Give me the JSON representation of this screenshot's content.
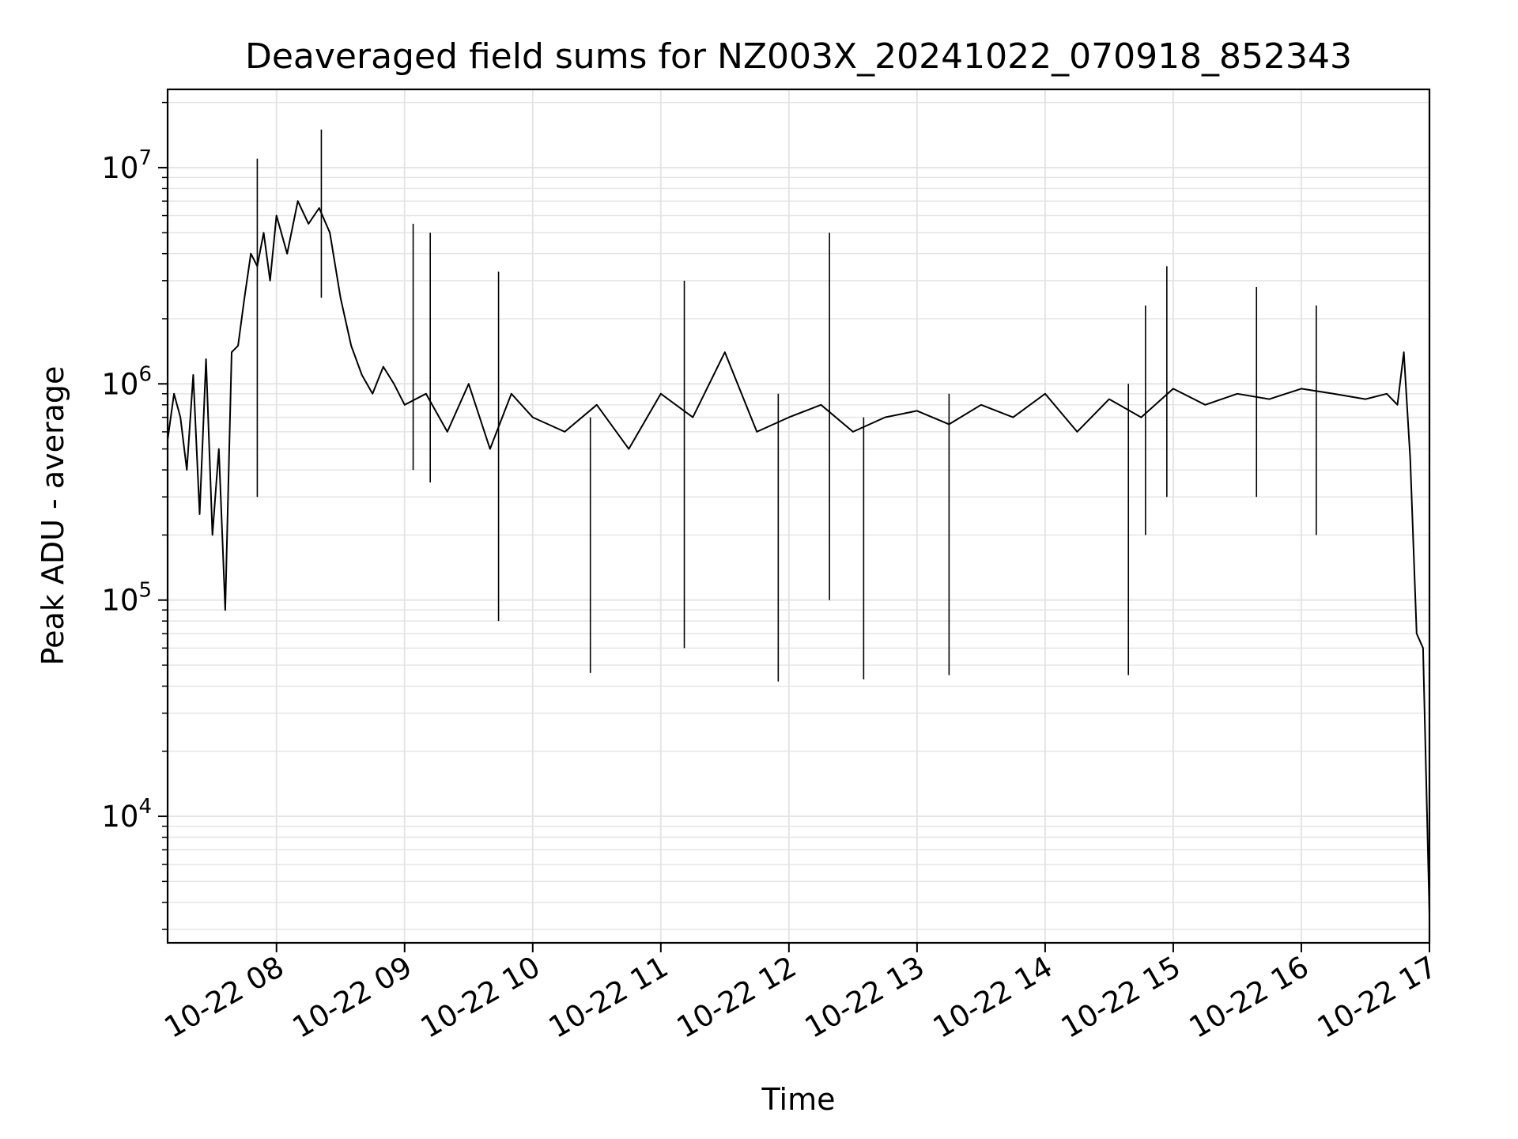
{
  "chart_data": {
    "type": "line",
    "title": "Deaveraged field sums for NZ003X_20241022_070918_852343",
    "xlabel": "Time",
    "ylabel": "Peak ADU - average",
    "yscale": "log",
    "ylim": [
      2600,
      23000000
    ],
    "xlim": [
      "2024-10-22 07:09",
      "2024-10-22 17:00"
    ],
    "grid": true,
    "line_color": "#000000",
    "grid_color": "#e5e5e5",
    "x_ticks": [
      {
        "value": "2024-10-22 08:00",
        "label": "10-22 08"
      },
      {
        "value": "2024-10-22 09:00",
        "label": "10-22 09"
      },
      {
        "value": "2024-10-22 10:00",
        "label": "10-22 10"
      },
      {
        "value": "2024-10-22 11:00",
        "label": "10-22 11"
      },
      {
        "value": "2024-10-22 12:00",
        "label": "10-22 12"
      },
      {
        "value": "2024-10-22 13:00",
        "label": "10-22 13"
      },
      {
        "value": "2024-10-22 14:00",
        "label": "10-22 14"
      },
      {
        "value": "2024-10-22 15:00",
        "label": "10-22 15"
      },
      {
        "value": "2024-10-22 16:00",
        "label": "10-22 16"
      },
      {
        "value": "2024-10-22 17:00",
        "label": "10-22 17"
      }
    ],
    "y_ticks": [
      {
        "value": 10000,
        "base": "10",
        "exp": "4"
      },
      {
        "value": 100000,
        "base": "10",
        "exp": "5"
      },
      {
        "value": 1000000,
        "base": "10",
        "exp": "6"
      },
      {
        "value": 10000000,
        "base": "10",
        "exp": "7"
      }
    ],
    "series": [
      {
        "x": [
          "2024-10-22 07:09",
          "2024-10-22 07:12",
          "2024-10-22 07:15",
          "2024-10-22 07:18",
          "2024-10-22 07:21",
          "2024-10-22 07:24",
          "2024-10-22 07:27",
          "2024-10-22 07:30",
          "2024-10-22 07:33",
          "2024-10-22 07:36",
          "2024-10-22 07:39",
          "2024-10-22 07:42",
          "2024-10-22 07:45",
          "2024-10-22 07:48",
          "2024-10-22 07:51",
          "2024-10-22 07:54",
          "2024-10-22 07:57",
          "2024-10-22 08:00",
          "2024-10-22 08:05",
          "2024-10-22 08:10",
          "2024-10-22 08:15",
          "2024-10-22 08:20",
          "2024-10-22 08:25",
          "2024-10-22 08:30",
          "2024-10-22 08:35",
          "2024-10-22 08:40",
          "2024-10-22 08:45",
          "2024-10-22 08:50",
          "2024-10-22 08:55",
          "2024-10-22 09:00",
          "2024-10-22 09:10",
          "2024-10-22 09:20",
          "2024-10-22 09:30",
          "2024-10-22 09:40",
          "2024-10-22 09:50",
          "2024-10-22 10:00",
          "2024-10-22 10:15",
          "2024-10-22 10:30",
          "2024-10-22 10:45",
          "2024-10-22 11:00",
          "2024-10-22 11:15",
          "2024-10-22 11:30",
          "2024-10-22 11:45",
          "2024-10-22 12:00",
          "2024-10-22 12:15",
          "2024-10-22 12:30",
          "2024-10-22 12:45",
          "2024-10-22 13:00",
          "2024-10-22 13:15",
          "2024-10-22 13:30",
          "2024-10-22 13:45",
          "2024-10-22 14:00",
          "2024-10-22 14:15",
          "2024-10-22 14:30",
          "2024-10-22 14:45",
          "2024-10-22 15:00",
          "2024-10-22 15:15",
          "2024-10-22 15:30",
          "2024-10-22 15:45",
          "2024-10-22 16:00",
          "2024-10-22 16:15",
          "2024-10-22 16:30",
          "2024-10-22 16:40",
          "2024-10-22 16:45",
          "2024-10-22 16:48",
          "2024-10-22 16:51",
          "2024-10-22 16:54",
          "2024-10-22 16:57",
          "2024-10-22 17:00"
        ],
        "values": [
          550000,
          900000,
          700000,
          400000,
          1100000,
          250000,
          1300000,
          200000,
          500000,
          90000,
          1400000,
          1500000,
          2500000,
          4000000,
          3500000,
          5000000,
          3000000,
          6000000,
          4000000,
          7000000,
          5500000,
          6500000,
          5000000,
          2500000,
          1500000,
          1100000,
          900000,
          1200000,
          1000000,
          800000,
          900000,
          600000,
          1000000,
          500000,
          900000,
          700000,
          600000,
          800000,
          500000,
          900000,
          700000,
          1400000,
          600000,
          700000,
          800000,
          600000,
          700000,
          750000,
          650000,
          800000,
          700000,
          900000,
          600000,
          850000,
          700000,
          950000,
          800000,
          900000,
          850000,
          950000,
          900000,
          850000,
          900000,
          800000,
          1400000,
          450000,
          70000,
          60000,
          3500
        ]
      }
    ],
    "spikes": [
      {
        "x": "2024-10-22 07:51",
        "values": [
          11000000,
          300000
        ]
      },
      {
        "x": "2024-10-22 08:21",
        "values": [
          15000000,
          2500000
        ]
      },
      {
        "x": "2024-10-22 09:04",
        "values": [
          5500000,
          400000
        ]
      },
      {
        "x": "2024-10-22 09:12",
        "values": [
          5000000,
          350000
        ]
      },
      {
        "x": "2024-10-22 09:44",
        "values": [
          3300000,
          80000
        ]
      },
      {
        "x": "2024-10-22 10:27",
        "values": [
          700000,
          46000
        ]
      },
      {
        "x": "2024-10-22 11:11",
        "values": [
          3000000,
          60000
        ]
      },
      {
        "x": "2024-10-22 11:55",
        "values": [
          900000,
          42000
        ]
      },
      {
        "x": "2024-10-22 12:19",
        "values": [
          5000000,
          100000
        ]
      },
      {
        "x": "2024-10-22 12:35",
        "values": [
          700000,
          43000
        ]
      },
      {
        "x": "2024-10-22 13:15",
        "values": [
          900000,
          45000
        ]
      },
      {
        "x": "2024-10-22 14:39",
        "values": [
          1000000,
          45000
        ]
      },
      {
        "x": "2024-10-22 14:47",
        "values": [
          2300000,
          200000
        ]
      },
      {
        "x": "2024-10-22 14:57",
        "values": [
          3500000,
          300000
        ]
      },
      {
        "x": "2024-10-22 15:39",
        "values": [
          2800000,
          300000
        ]
      },
      {
        "x": "2024-10-22 16:07",
        "values": [
          2300000,
          200000
        ]
      }
    ]
  }
}
